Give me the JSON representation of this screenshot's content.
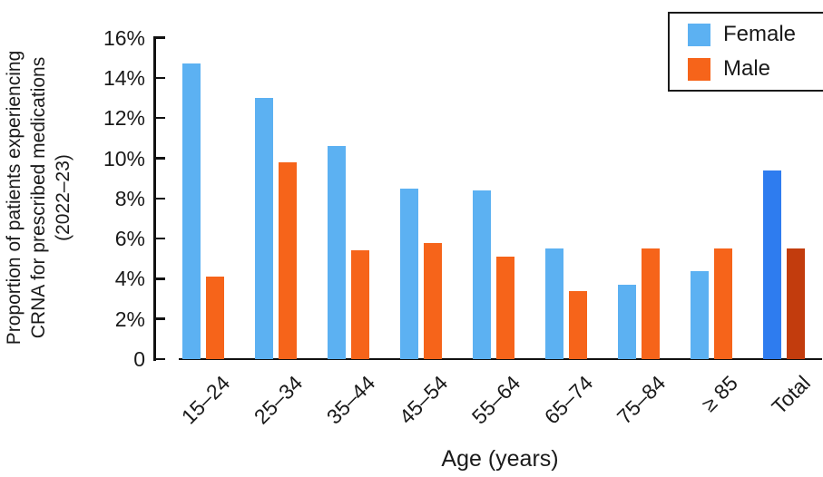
{
  "figure": {
    "background": "#ffffff",
    "text_color": "#1a1a1a",
    "axis_color": "#111111"
  },
  "colors": {
    "female": "#5CB1F2",
    "male": "#F6641A",
    "total_female": "#2E7CEF",
    "total_male": "#C23C0D"
  },
  "y_axis": {
    "title_lines": [
      "Proportion of patients experiencing",
      "CRNA for prescribed medications",
      "(2022–23)"
    ],
    "tick_labels": [
      "0",
      "2%",
      "4%",
      "6%",
      "8%",
      "10%",
      "12%",
      "14%",
      "16%"
    ],
    "tick_values": [
      0,
      2,
      4,
      6,
      8,
      10,
      12,
      14,
      16
    ]
  },
  "x_axis": {
    "title": "Age (years)"
  },
  "legend": {
    "entries": [
      {
        "label": "Female",
        "color": "#5CB1F2"
      },
      {
        "label": "Male",
        "color": "#F6641A"
      }
    ]
  },
  "chart_data": {
    "type": "bar",
    "title": "",
    "xlabel": "Age (years)",
    "ylabel": "Proportion of patients experiencing CRNA for prescribed medications (2022–23)",
    "categories": [
      "15–24",
      "25–34",
      "35–44",
      "45–54",
      "55–64",
      "65–74",
      "75–84",
      "≥ 85",
      "Total"
    ],
    "series": [
      {
        "name": "Female",
        "values": [
          14.7,
          13.0,
          10.6,
          8.5,
          8.4,
          5.5,
          3.7,
          4.4,
          9.4
        ]
      },
      {
        "name": "Male",
        "values": [
          4.1,
          9.8,
          5.4,
          5.8,
          5.1,
          3.4,
          5.5,
          5.5,
          5.5
        ]
      }
    ],
    "y_unit": "%",
    "ylim": [
      0,
      16
    ],
    "ytick_step": 2,
    "grid": false,
    "legend_position": "top-right",
    "total_category_highlighted": true,
    "total_colors": {
      "Female": "#2E7CEF",
      "Male": "#C23C0D"
    }
  }
}
